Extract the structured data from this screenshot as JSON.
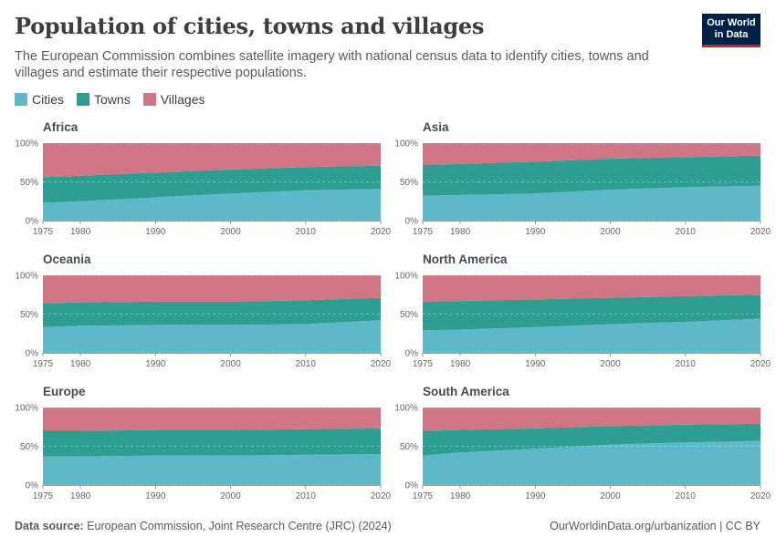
{
  "header": {
    "title": "Population of cities, towns and villages",
    "subtitle": "The European Commission combines satellite imagery with national census data to identify cities, towns and villages and estimate their respective populations.",
    "logo_line1": "Our World",
    "logo_line2": "in Data"
  },
  "legend": [
    {
      "label": "Cities",
      "color": "#5fb8c8"
    },
    {
      "label": "Towns",
      "color": "#2e9e93"
    },
    {
      "label": "Villages",
      "color": "#cf7583"
    }
  ],
  "footer": {
    "source_label": "Data source:",
    "source_text": "European Commission, Joint Research Centre (JRC) (2024)",
    "right_text": "OurWorldinData.org/urbanization | CC BY"
  },
  "chart_data": [
    {
      "type": "area",
      "title": "Africa",
      "x": [
        1975,
        1980,
        1990,
        2000,
        2010,
        2020
      ],
      "x_ticks": [
        "1975",
        "1980",
        "1990",
        "2000",
        "2010",
        "2020"
      ],
      "y_ticks": [
        "0%",
        "50%",
        "100%"
      ],
      "ylim": [
        0,
        100
      ],
      "series": [
        {
          "name": "Cities",
          "values": [
            23,
            25,
            30,
            35,
            39,
            41
          ]
        },
        {
          "name": "Towns",
          "values": [
            33,
            33,
            32,
            31,
            30,
            30
          ]
        },
        {
          "name": "Villages",
          "values": [
            44,
            42,
            38,
            34,
            31,
            29
          ]
        }
      ]
    },
    {
      "type": "area",
      "title": "Asia",
      "x": [
        1975,
        1980,
        1990,
        2000,
        2010,
        2020
      ],
      "x_ticks": [
        "1975",
        "1980",
        "1990",
        "2000",
        "2010",
        "2020"
      ],
      "y_ticks": [
        "0%",
        "50%",
        "100%"
      ],
      "ylim": [
        0,
        100
      ],
      "series": [
        {
          "name": "Cities",
          "values": [
            32,
            33,
            35,
            40,
            43,
            45
          ]
        },
        {
          "name": "Towns",
          "values": [
            40,
            40,
            41,
            40,
            39,
            39
          ]
        },
        {
          "name": "Villages",
          "values": [
            28,
            27,
            24,
            20,
            18,
            16
          ]
        }
      ]
    },
    {
      "type": "area",
      "title": "Oceania",
      "x": [
        1975,
        1980,
        1990,
        2000,
        2010,
        2020
      ],
      "x_ticks": [
        "1975",
        "1980",
        "1990",
        "2000",
        "2010",
        "2020"
      ],
      "y_ticks": [
        "0%",
        "50%",
        "100%"
      ],
      "ylim": [
        0,
        100
      ],
      "series": [
        {
          "name": "Cities",
          "values": [
            33,
            35,
            36,
            36,
            37,
            42
          ]
        },
        {
          "name": "Towns",
          "values": [
            31,
            30,
            30,
            30,
            31,
            29
          ]
        },
        {
          "name": "Villages",
          "values": [
            36,
            35,
            34,
            34,
            32,
            29
          ]
        }
      ]
    },
    {
      "type": "area",
      "title": "North America",
      "x": [
        1975,
        1980,
        1990,
        2000,
        2010,
        2020
      ],
      "x_ticks": [
        "1975",
        "1980",
        "1990",
        "2000",
        "2010",
        "2020"
      ],
      "y_ticks": [
        "0%",
        "50%",
        "100%"
      ],
      "ylim": [
        0,
        100
      ],
      "series": [
        {
          "name": "Cities",
          "values": [
            29,
            30,
            33,
            37,
            40,
            44
          ]
        },
        {
          "name": "Towns",
          "values": [
            37,
            37,
            36,
            34,
            33,
            31
          ]
        },
        {
          "name": "Villages",
          "values": [
            34,
            33,
            31,
            29,
            27,
            25
          ]
        }
      ]
    },
    {
      "type": "area",
      "title": "Europe",
      "x": [
        1975,
        1980,
        1990,
        2000,
        2010,
        2020
      ],
      "x_ticks": [
        "1975",
        "1980",
        "1990",
        "2000",
        "2010",
        "2020"
      ],
      "y_ticks": [
        "0%",
        "50%",
        "100%"
      ],
      "ylim": [
        0,
        100
      ],
      "series": [
        {
          "name": "Cities",
          "values": [
            37,
            37,
            38,
            38,
            39,
            40
          ]
        },
        {
          "name": "Towns",
          "values": [
            33,
            33,
            33,
            33,
            33,
            33
          ]
        },
        {
          "name": "Villages",
          "values": [
            30,
            30,
            29,
            29,
            28,
            27
          ]
        }
      ]
    },
    {
      "type": "area",
      "title": "South America",
      "x": [
        1975,
        1980,
        1990,
        2000,
        2010,
        2020
      ],
      "x_ticks": [
        "1975",
        "1980",
        "1990",
        "2000",
        "2010",
        "2020"
      ],
      "y_ticks": [
        "0%",
        "50%",
        "100%"
      ],
      "ylim": [
        0,
        100
      ],
      "series": [
        {
          "name": "Cities",
          "values": [
            38,
            42,
            47,
            52,
            55,
            57
          ]
        },
        {
          "name": "Towns",
          "values": [
            32,
            29,
            26,
            24,
            23,
            22
          ]
        },
        {
          "name": "Villages",
          "values": [
            30,
            29,
            27,
            24,
            22,
            21
          ]
        }
      ]
    }
  ]
}
